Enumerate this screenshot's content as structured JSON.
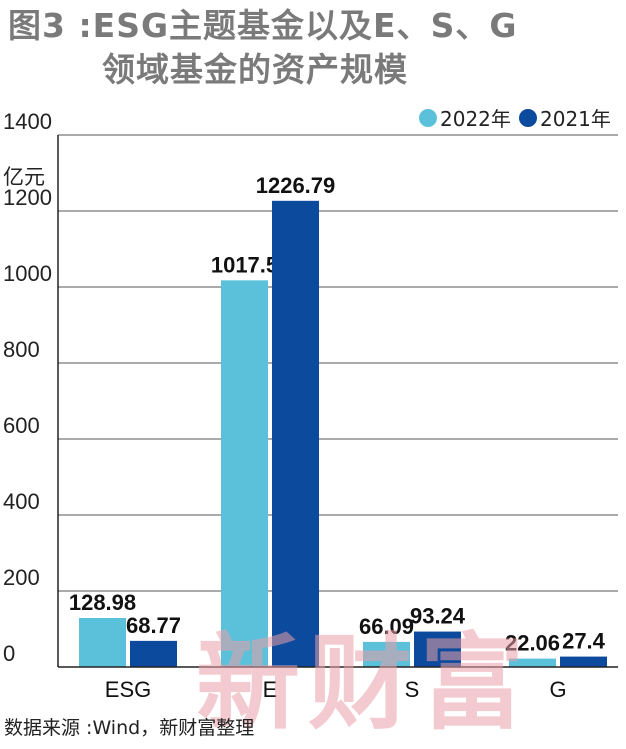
{
  "title": {
    "line1": "图3 :ESG主题基金以及E、S、G",
    "line2": "领域基金的资产规模"
  },
  "source": "数据来源 :Wind，新财富整理",
  "watermark": "新财富",
  "colors": {
    "series_2022": "#5bc0d9",
    "series_2021": "#0b4a9c",
    "axis": "#222222",
    "grid": "#555555"
  },
  "chart_data": {
    "type": "bar",
    "categories": [
      "ESG",
      "E",
      "S",
      "G"
    ],
    "series": [
      {
        "name": "2022年",
        "values": [
          128.98,
          1017.5,
          66.09,
          22.06
        ],
        "labels": [
          "128.98",
          "1017.5",
          "66.09",
          "22.06"
        ]
      },
      {
        "name": "2021年",
        "values": [
          68.77,
          1226.79,
          93.24,
          27.4
        ],
        "labels": [
          "68.77",
          "1226.79",
          "93.24",
          "27.4"
        ]
      }
    ],
    "ylabel": "亿元",
    "ylim": [
      0,
      1400
    ],
    "yticks": [
      "0",
      "200",
      "400",
      "600",
      "800",
      "1000",
      "1200",
      "1400"
    ],
    "grid": true,
    "legend": "top-right"
  }
}
